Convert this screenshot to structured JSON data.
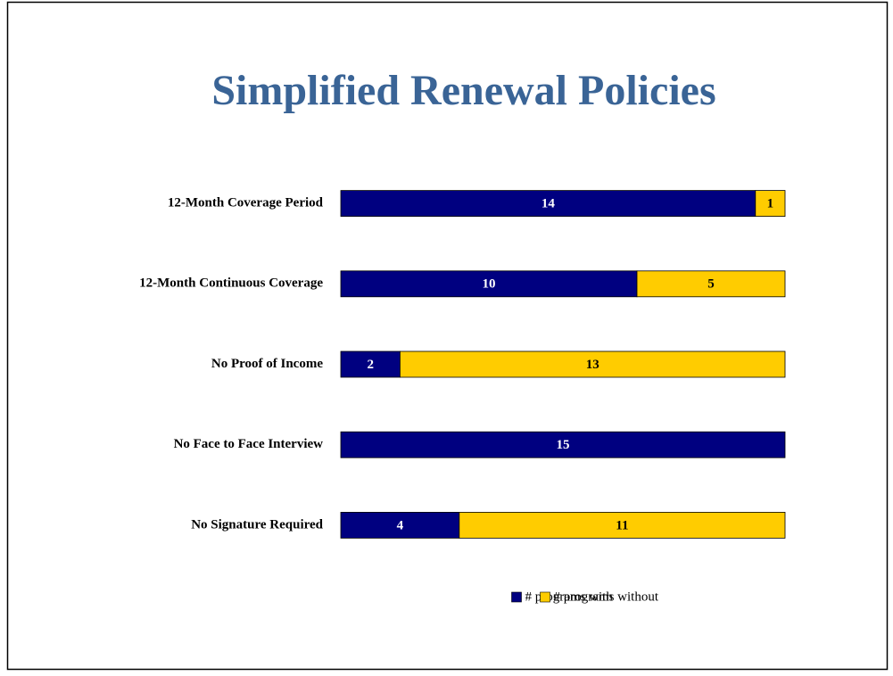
{
  "chart_data": {
    "type": "stacked-bar-horizontal",
    "title": "Simplified Renewal Policies",
    "categories": [
      "12-Month Coverage Period",
      "12-Month Continuous Coverage",
      "No Proof of Income",
      "No Face to Face Interview",
      "No Signature Required"
    ],
    "series": [
      {
        "name": "# programs with",
        "color": "#000080",
        "values": [
          14,
          10,
          2,
          15,
          4
        ]
      },
      {
        "name": "# programs without",
        "color": "#ffcc00",
        "values": [
          1,
          5,
          13,
          0,
          11
        ]
      }
    ],
    "xlim": [
      0,
      15
    ],
    "legend": "bottom"
  }
}
